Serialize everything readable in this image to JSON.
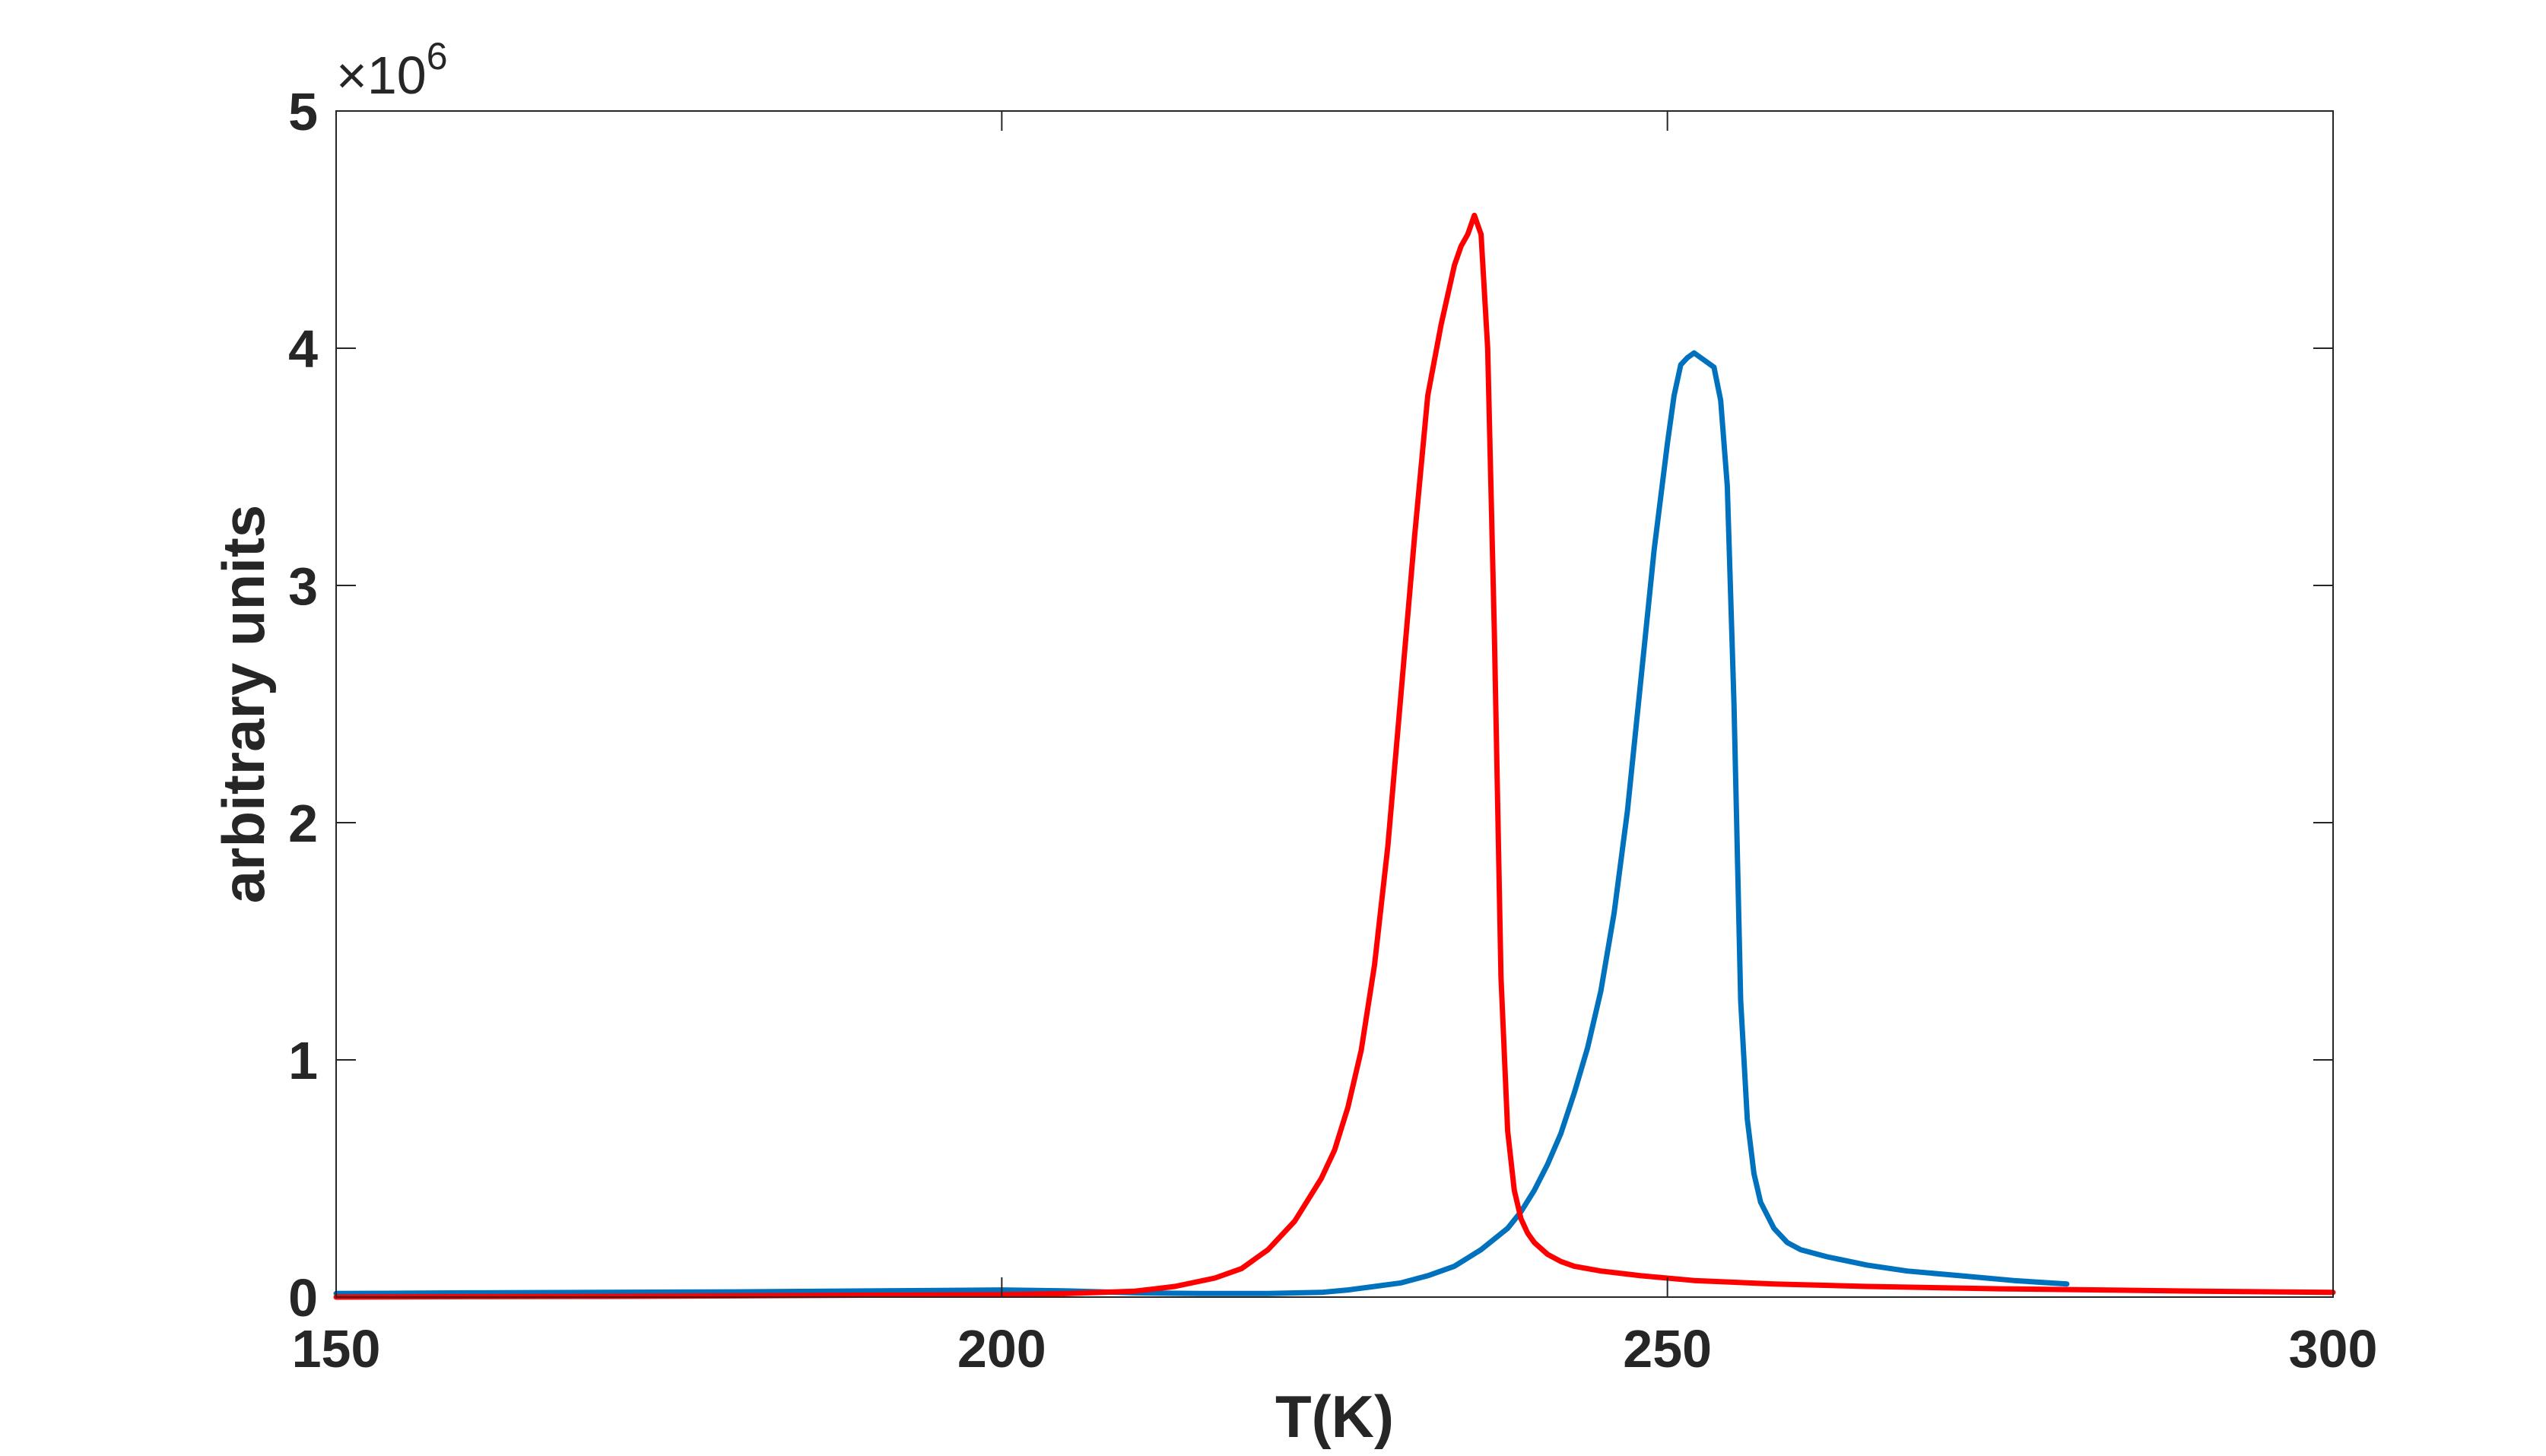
{
  "chart_data": {
    "type": "line",
    "title": "",
    "xlabel": "T(K)",
    "ylabel": "arbitrary units",
    "xlim": [
      150,
      300
    ],
    "ylim": [
      0,
      5000000
    ],
    "xticks": [
      150,
      200,
      250,
      300
    ],
    "xtick_labels": [
      "150",
      "200",
      "250",
      "300"
    ],
    "yticks": [
      0,
      1000000,
      2000000,
      3000000,
      4000000,
      5000000
    ],
    "ytick_labels": [
      "0",
      "1",
      "2",
      "3",
      "4",
      "5"
    ],
    "y_exponent_label": {
      "base": "×10",
      "exponent": "6"
    },
    "grid": false,
    "legend": null,
    "series": [
      {
        "color": "#0072BD",
        "x": [
          150,
          160,
          170,
          180,
          190,
          200,
          205,
          210,
          215,
          220,
          224,
          226,
          228,
          230,
          232,
          234,
          236,
          238,
          239,
          240,
          241,
          242,
          243,
          244,
          245,
          246,
          247,
          248,
          249,
          250,
          250.5,
          251,
          251.5,
          252,
          253,
          253.5,
          254,
          254.5,
          255,
          255.5,
          256,
          256.5,
          257,
          258,
          259,
          260,
          262,
          265,
          268,
          272,
          276,
          280
        ],
        "y": [
          15000,
          18000,
          20000,
          22000,
          26000,
          30000,
          26000,
          18000,
          15000,
          15000,
          20000,
          30000,
          45000,
          60000,
          90000,
          130000,
          200000,
          290000,
          360000,
          450000,
          560000,
          690000,
          860000,
          1050000,
          1290000,
          1620000,
          2050000,
          2600000,
          3150000,
          3600000,
          3800000,
          3930000,
          3960000,
          3980000,
          3940000,
          3920000,
          3780000,
          3420000,
          2500000,
          1250000,
          750000,
          520000,
          400000,
          290000,
          230000,
          200000,
          170000,
          135000,
          110000,
          90000,
          70000,
          55000
        ]
      },
      {
        "color": "#FF0000",
        "x": [
          150,
          160,
          170,
          180,
          190,
          200,
          205,
          210,
          213,
          216,
          218,
          220,
          222,
          224,
          225,
          226,
          227,
          228,
          229,
          230,
          231,
          232,
          233,
          234,
          234.5,
          235,
          235.5,
          236,
          236.5,
          237,
          237.5,
          238,
          238.5,
          239,
          239.5,
          240,
          241,
          242,
          243,
          245,
          248,
          252,
          258,
          265,
          275,
          290,
          300
        ],
        "y": [
          0,
          2000,
          3000,
          5000,
          8000,
          10000,
          15000,
          25000,
          45000,
          80000,
          120000,
          200000,
          320000,
          500000,
          620000,
          800000,
          1040000,
          1400000,
          1900000,
          2550000,
          3200000,
          3800000,
          4100000,
          4350000,
          4430000,
          4480000,
          4560000,
          4480000,
          4000000,
          2800000,
          1350000,
          700000,
          450000,
          330000,
          270000,
          230000,
          180000,
          150000,
          130000,
          110000,
          90000,
          70000,
          55000,
          45000,
          35000,
          25000,
          20000
        ]
      }
    ]
  }
}
